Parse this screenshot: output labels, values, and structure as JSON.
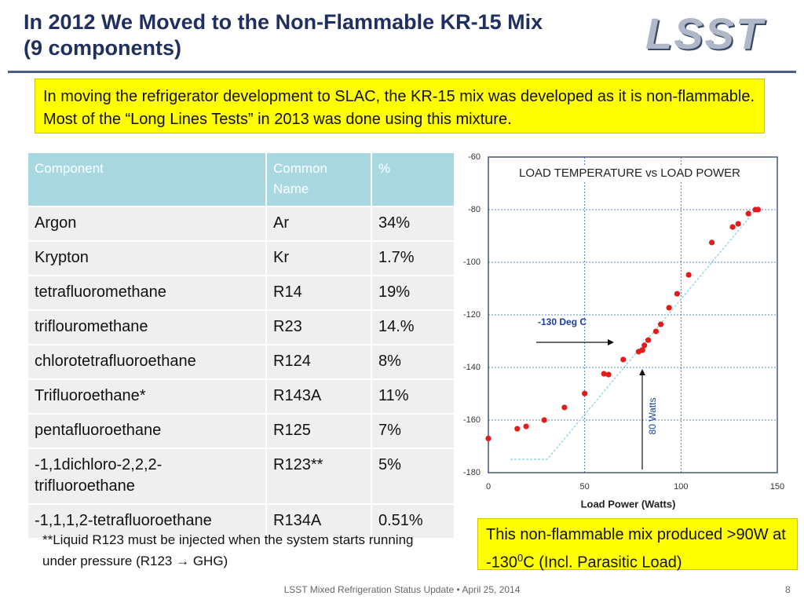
{
  "slide": {
    "title_lines": [
      "In 2012 We Moved to the Non-Flammable KR-15 Mix",
      "(9 components)"
    ],
    "logo": "LSST",
    "intro": "In moving the refrigerator development to SLAC, the KR-15 mix was developed as it is non-flammable.  Most of the “Long Lines Tests”  in  2013 was done using this mixture.",
    "note": "**Liquid R123 must be injected when the system starts running under pressure (R123 → GHG)",
    "result": {
      "before": "This  non-flammable mix produced >90W at -130",
      "sup": "0",
      "after": "C  (Incl. Parasitic Load)"
    },
    "footer": "LSST Mixed Refrigeration Status Update • April 25, 2014",
    "page_number": "8"
  },
  "table": {
    "header": [
      "Component",
      "Common Name",
      "%"
    ],
    "rows": [
      [
        "Argon",
        "Ar",
        "34%"
      ],
      [
        "Krypton",
        "Kr",
        "1.7%"
      ],
      [
        "tetrafluoromethane",
        "R14",
        "19%"
      ],
      [
        "triflouromethane",
        "R23",
        "14.%"
      ],
      [
        "chlorotetrafluoroethane",
        "R124",
        "8%"
      ],
      [
        "Trifluoroethane*",
        "R143A",
        "11%"
      ],
      [
        "pentafluoroethane",
        "R125",
        "7%"
      ],
      [
        "-1,1dichloro-2,2,2-trifluoroethane",
        "R123**",
        "5%"
      ],
      [
        "-1,1,1,2-tetrafluoroethane",
        "R134A",
        "0.51%"
      ]
    ]
  },
  "chart_data": {
    "type": "scatter",
    "title": "LOAD TEMPERATURE vs LOAD POWER",
    "x_label": "Load Power (Watts)",
    "annotations": [
      "-130 Deg C",
      "80 Watts"
    ],
    "color": "#e31b1b",
    "x": [
      0,
      15,
      19.6,
      29,
      39.5,
      50,
      60,
      62.4,
      70,
      78,
      80,
      81,
      83,
      87,
      89.5,
      93.8,
      98,
      104,
      116,
      126.8,
      129.7,
      135,
      138.6,
      140
    ],
    "values": [
      -167,
      -163.3,
      -162.4,
      -160,
      -155.2,
      -149.9,
      -142.4,
      -142.7,
      -137,
      -134,
      -133.4,
      -131.6,
      -129.6,
      -126.3,
      -123.6,
      -117.3,
      -112,
      -104.8,
      -92.5,
      -86.6,
      -85.4,
      -81.5,
      -80,
      -80
    ],
    "xlim": [
      0,
      150
    ],
    "xticks": [
      0,
      50,
      100,
      150
    ],
    "ylim": [
      -180,
      -60
    ],
    "yticks": [
      -180,
      -160,
      -140,
      -120,
      -100,
      -80,
      -60
    ],
    "grid": true
  }
}
